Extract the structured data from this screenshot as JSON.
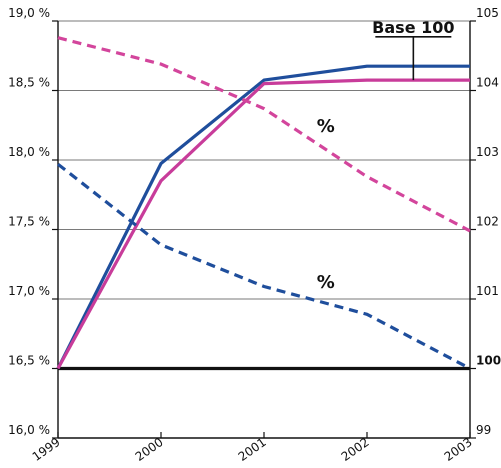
{
  "chart_data": {
    "type": "line",
    "x": [
      "1999",
      "2000",
      "2001",
      "2002",
      "2003"
    ],
    "y_left": {
      "ylim": [
        16.0,
        19.0
      ],
      "ticks": [
        {
          "value": 19.0,
          "label": "19,0 %"
        },
        {
          "value": 18.5,
          "label": "18,5 %"
        },
        {
          "value": 18.0,
          "label": "18,0 %"
        },
        {
          "value": 17.5,
          "label": "17,5 %"
        },
        {
          "value": 17.0,
          "label": "17,0 %"
        },
        {
          "value": 16.5,
          "label": "16,5 %"
        },
        {
          "value": 16.0,
          "label": "16,0 %"
        }
      ]
    },
    "y_right": {
      "ylim": [
        99,
        105
      ],
      "ticks": [
        {
          "value": 105,
          "label": "105"
        },
        {
          "value": 104,
          "label": "104"
        },
        {
          "value": 103,
          "label": "103"
        },
        {
          "value": 102,
          "label": "102"
        },
        {
          "value": 101,
          "label": "101"
        },
        {
          "value": 100,
          "label": "100",
          "bold": true
        },
        {
          "value": 99,
          "label": "99"
        }
      ]
    },
    "grid": true,
    "series": [
      {
        "axis": "right",
        "color": "#1f4e9c",
        "dash": false,
        "values": [
          100,
          102.95,
          104.15,
          104.35,
          104.35
        ]
      },
      {
        "axis": "right",
        "color": "#c83c9a",
        "dash": false,
        "values": [
          100,
          102.7,
          104.1,
          104.15,
          104.15
        ]
      },
      {
        "axis": "left",
        "color": "#d3459c",
        "dash": true,
        "values": [
          18.88,
          18.69,
          18.37,
          17.88,
          17.49
        ]
      },
      {
        "axis": "left",
        "color": "#1f4e9c",
        "dash": true,
        "values": [
          17.97,
          17.39,
          17.09,
          16.89,
          16.5
        ]
      }
    ],
    "baseline": {
      "axis": "left",
      "value": 16.5,
      "color": "#111111"
    },
    "annotations": [
      {
        "text": "Base 100",
        "style": "base",
        "at": {
          "axis": "right",
          "x": 3.45,
          "y": 104.83
        }
      },
      {
        "text": "%",
        "style": "pct",
        "at": {
          "axis": "left",
          "x": 2.6,
          "y": 18.2
        }
      },
      {
        "text": "%",
        "style": "pct",
        "at": {
          "axis": "left",
          "x": 2.6,
          "y": 17.08
        }
      }
    ]
  }
}
